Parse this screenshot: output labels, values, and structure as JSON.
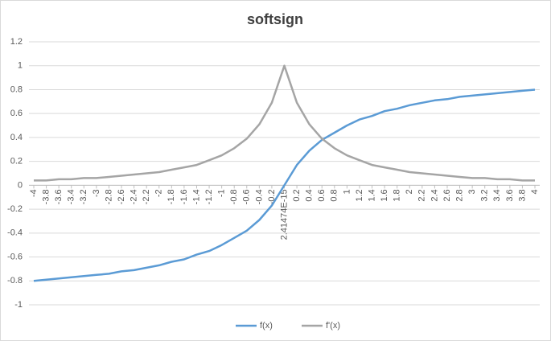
{
  "chart_data": {
    "type": "line",
    "title": "softsign",
    "categories": [
      "-4",
      "-3.8",
      "-3.6",
      "-3.4",
      "-3.2",
      "-3",
      "-2.8",
      "-2.6",
      "-2.4",
      "-2.2",
      "-2",
      "-1.8",
      "-1.6",
      "-1.4",
      "-1.2",
      "-1",
      "-0.8",
      "-0.6",
      "-0.4",
      "-0.2",
      "2.41474E-15",
      "0.2",
      "0.4",
      "0.6",
      "0.8",
      "1",
      "1.2",
      "1.4",
      "1.6",
      "1.8",
      "2",
      "2.2",
      "2.4",
      "2.6",
      "2.8",
      "3",
      "3.2",
      "3.4",
      "3.6",
      "3.8",
      "4"
    ],
    "series": [
      {
        "name": "f(x)",
        "color": "#5b9bd5",
        "values": [
          -0.8,
          -0.79,
          -0.78,
          -0.77,
          -0.76,
          -0.75,
          -0.74,
          -0.72,
          -0.71,
          -0.69,
          -0.67,
          -0.64,
          -0.62,
          -0.58,
          -0.55,
          -0.5,
          -0.44,
          -0.38,
          -0.29,
          -0.17,
          0,
          0.17,
          0.29,
          0.38,
          0.44,
          0.5,
          0.55,
          0.58,
          0.62,
          0.64,
          0.67,
          0.69,
          0.71,
          0.72,
          0.74,
          0.75,
          0.76,
          0.77,
          0.78,
          0.79,
          0.8
        ]
      },
      {
        "name": "f'(x)",
        "color": "#a5a5a5",
        "values": [
          0.04,
          0.04,
          0.05,
          0.05,
          0.06,
          0.06,
          0.07,
          0.08,
          0.09,
          0.1,
          0.11,
          0.13,
          0.15,
          0.17,
          0.21,
          0.25,
          0.31,
          0.39,
          0.51,
          0.69,
          1,
          0.69,
          0.51,
          0.39,
          0.31,
          0.25,
          0.21,
          0.17,
          0.15,
          0.13,
          0.11,
          0.1,
          0.09,
          0.08,
          0.07,
          0.06,
          0.06,
          0.05,
          0.05,
          0.04,
          0.04
        ]
      }
    ],
    "ylim": [
      -1,
      1.2
    ],
    "yticks": [
      -1,
      -0.8,
      -0.6,
      -0.4,
      -0.2,
      0,
      0.2,
      0.4,
      0.6,
      0.8,
      1,
      1.2
    ],
    "grid": true,
    "legend": "bottom"
  }
}
